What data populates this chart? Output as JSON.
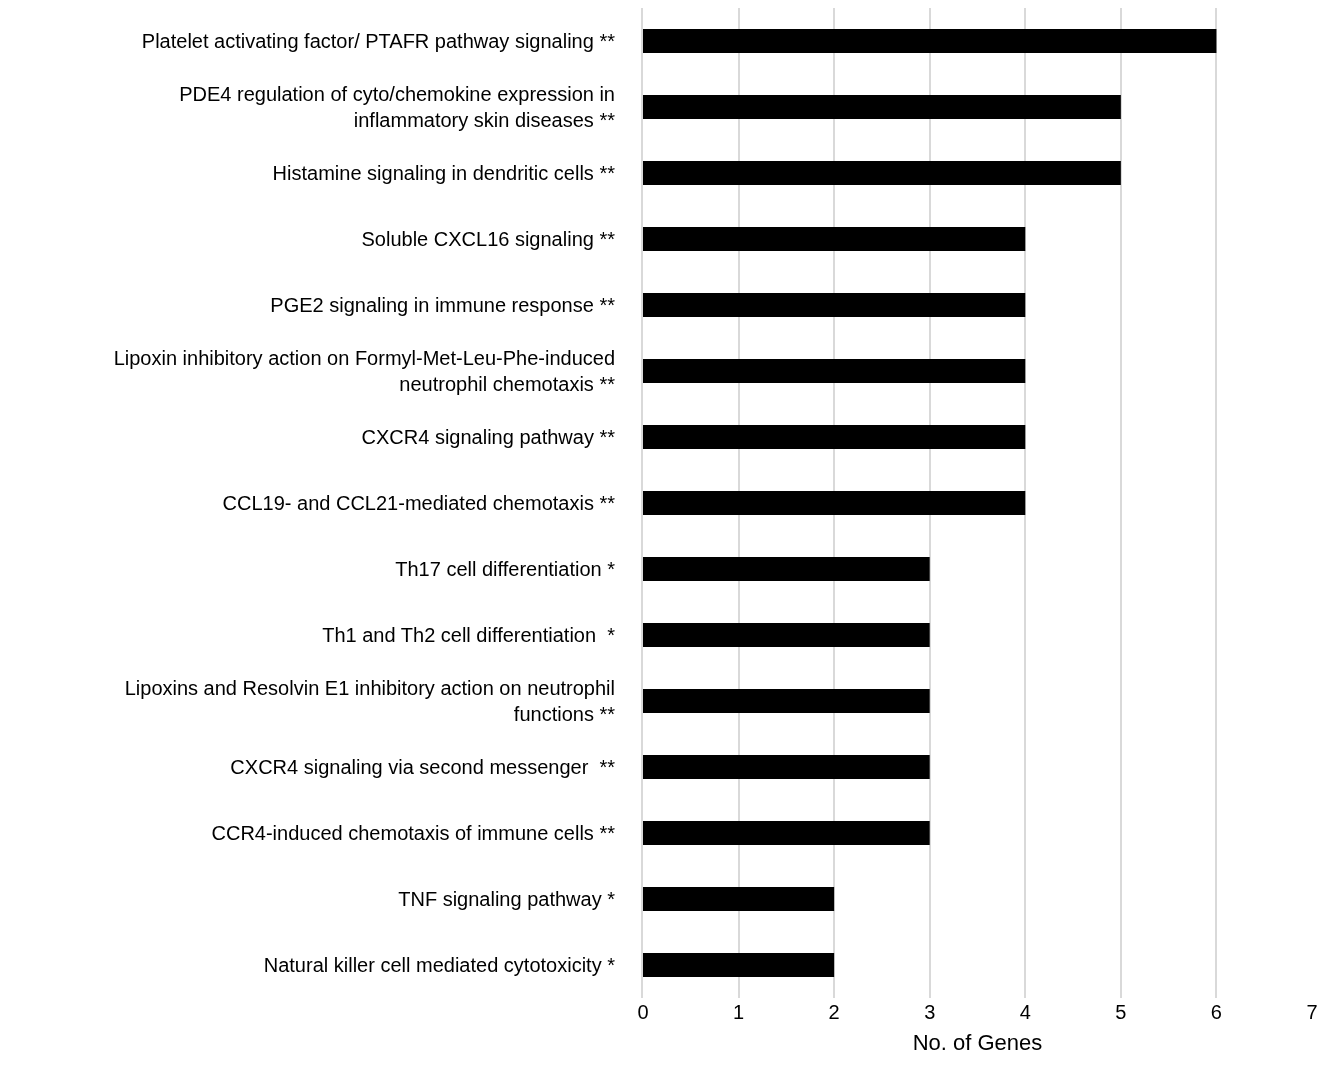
{
  "chart_data": {
    "type": "bar",
    "orientation": "horizontal",
    "xlabel": "No. of Genes",
    "categories": [
      "Platelet activating factor/ PTAFR pathway signaling **",
      "PDE4 regulation of cyto/chemokine expression in\ninflammatory skin diseases **",
      "Histamine signaling in dendritic cells **",
      "Soluble CXCL16 signaling **",
      "PGE2 signaling in immune response **",
      "Lipoxin inhibitory action on Formyl-Met-Leu-Phe-induced\nneutrophil chemotaxis **",
      "CXCR4 signaling pathway **",
      "CCL19- and CCL21-mediated chemotaxis **",
      "Th17 cell differentiation *",
      "Th1 and Th2 cell differentiation  *",
      "Lipoxins and Resolvin E1 inhibitory action on neutrophil\nfunctions **",
      "CXCR4 signaling via second messenger  **",
      "CCR4-induced chemotaxis of immune cells **",
      "TNF signaling pathway *",
      "Natural killer cell mediated cytotoxicity *"
    ],
    "values": [
      6,
      5,
      5,
      4,
      4,
      4,
      4,
      4,
      3,
      3,
      3,
      3,
      3,
      2,
      2
    ],
    "color": "#000000",
    "xlim": [
      0,
      7
    ],
    "xticks": [
      0,
      1,
      2,
      3,
      4,
      5,
      6,
      7
    ],
    "grid": "x"
  }
}
